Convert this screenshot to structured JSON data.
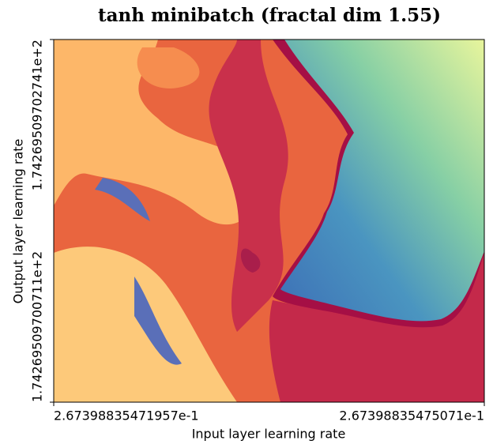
{
  "chart_data": {
    "type": "image",
    "title": "tanh minibatch (fractal dim 1.55)",
    "x_label": "Input layer learning rate",
    "y_label": "Output layer learning rate",
    "xlim": [
      0.267398835471957,
      0.267398835475071
    ],
    "xticks": [
      {
        "value": 0.267398835471957,
        "label": "2.67398835471957e-1"
      },
      {
        "value": 0.267398835475071,
        "label": "2.67398835475071e-1"
      }
    ],
    "ylim": [
      174.269509700711,
      174.269509702741
    ],
    "yticks": [
      {
        "value": 174.269509700711,
        "label": "1.74269509700711e+2"
      },
      {
        "value": 174.269509702741,
        "label": "1.74269509702741e+2"
      }
    ]
  }
}
